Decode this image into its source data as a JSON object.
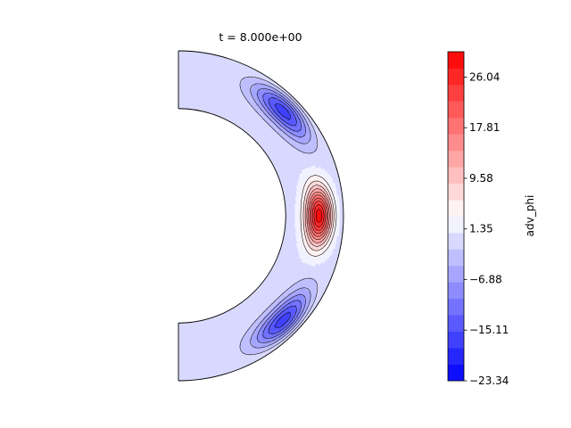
{
  "chart_data": {
    "type": "contour",
    "title": "t = 8.000e+00",
    "colorbar": {
      "label": "adv_phi",
      "range": [
        -23.34,
        30.16
      ],
      "levels": 20,
      "ticks": [
        -23.34,
        -15.11,
        -6.88,
        1.35,
        9.58,
        17.81,
        26.04
      ],
      "tick_labels": [
        "−23.34",
        "−15.11",
        "−6.88",
        "1.35",
        "9.58",
        "17.81",
        "26.04"
      ],
      "colormap": "bwr",
      "colors": {
        "low": "#0000ff",
        "mid": "#ffffff",
        "high": "#ff0000"
      }
    },
    "domain": {
      "shape": "meridional half-annulus",
      "inner_radius_ratio": 0.65
    },
    "features": [
      {
        "name": "positive-core",
        "value": 30.16,
        "latitude_deg": 0,
        "radius_fraction": 0.6
      },
      {
        "name": "negative-core-north",
        "value": -23.34,
        "latitude_deg": 45,
        "radius_fraction": 0.8
      },
      {
        "name": "negative-core-south",
        "value": -23.34,
        "latitude_deg": -45,
        "radius_fraction": 0.8
      }
    ]
  }
}
